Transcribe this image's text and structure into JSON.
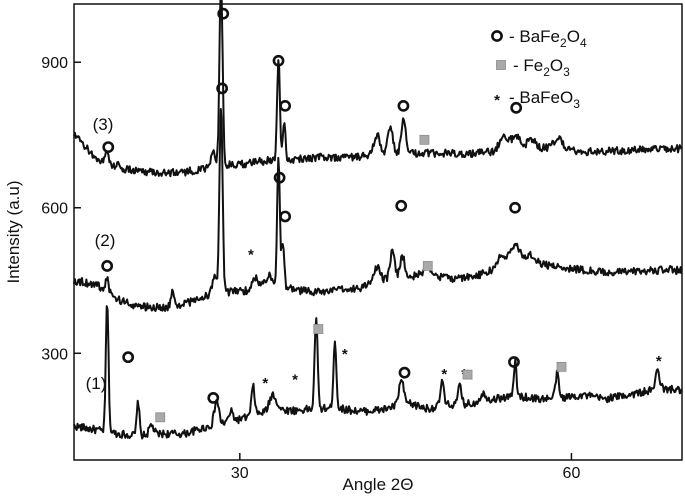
{
  "chart_data": {
    "type": "line",
    "title": "",
    "xlabel": "Angle 2Θ",
    "ylabel": "Intensity (a.u)",
    "xlim": [
      15,
      70
    ],
    "ylim": [
      80,
      1020
    ],
    "xticks": [
      30,
      60
    ],
    "yticks": [
      300,
      600,
      900
    ],
    "grid": false,
    "legend_position": "top-right",
    "legend": [
      {
        "marker": "circle",
        "text": "- BaFe",
        "sub1": "2",
        "mid": "O",
        "sub2": "4"
      },
      {
        "marker": "square",
        "text": "- Fe",
        "sub1": "2",
        "mid": "O",
        "sub2": "3"
      },
      {
        "marker": "star",
        "text": "- BaFe",
        "sub1": "",
        "mid": "O",
        "sub2": "3"
      }
    ],
    "series": [
      {
        "name": "(1)",
        "baseline": [
          [
            15,
            150
          ],
          [
            17,
            142
          ],
          [
            19,
            134
          ],
          [
            21,
            130
          ],
          [
            23,
            134
          ],
          [
            25,
            134
          ],
          [
            27,
            148
          ],
          [
            29,
            158
          ],
          [
            31,
            170
          ],
          [
            33,
            184
          ],
          [
            35,
            182
          ],
          [
            37,
            186
          ],
          [
            39,
            186
          ],
          [
            41,
            180
          ],
          [
            43,
            184
          ],
          [
            45,
            198
          ],
          [
            47,
            186
          ],
          [
            49,
            194
          ],
          [
            51,
            196
          ],
          [
            53,
            206
          ],
          [
            55,
            212
          ],
          [
            57,
            206
          ],
          [
            59,
            208
          ],
          [
            61,
            214
          ],
          [
            63,
            206
          ],
          [
            65,
            214
          ],
          [
            67,
            222
          ],
          [
            69,
            226
          ],
          [
            70,
            222
          ]
        ],
        "peaks": [
          [
            18.0,
            270,
            0.12
          ],
          [
            20.8,
            70,
            0.12
          ],
          [
            22.0,
            20,
            0.2
          ],
          [
            27.9,
            50,
            0.2
          ],
          [
            29.2,
            20,
            0.2
          ],
          [
            31.2,
            60,
            0.15
          ],
          [
            33.0,
            32,
            0.3
          ],
          [
            36.9,
            190,
            0.13
          ],
          [
            38.6,
            140,
            0.13
          ],
          [
            44.6,
            50,
            0.2
          ],
          [
            48.3,
            52,
            0.15
          ],
          [
            49.9,
            38,
            0.15
          ],
          [
            52.0,
            15,
            0.3
          ],
          [
            54.9,
            70,
            0.12
          ],
          [
            58.7,
            50,
            0.15
          ],
          [
            67.8,
            40,
            0.2
          ]
        ],
        "label": "(1)"
      },
      {
        "name": "(2)",
        "baseline": [
          [
            15,
            450
          ],
          [
            17,
            442
          ],
          [
            19,
            410
          ],
          [
            21,
            396
          ],
          [
            23,
            394
          ],
          [
            25,
            402
          ],
          [
            27,
            418
          ],
          [
            29,
            426
          ],
          [
            31,
            430
          ],
          [
            33,
            444
          ],
          [
            35,
            430
          ],
          [
            37,
            426
          ],
          [
            39,
            430
          ],
          [
            41,
            436
          ],
          [
            43,
            452
          ],
          [
            45,
            458
          ],
          [
            47,
            464
          ],
          [
            49,
            454
          ],
          [
            51,
            458
          ],
          [
            53,
            470
          ],
          [
            55,
            488
          ],
          [
            57,
            484
          ],
          [
            59,
            478
          ],
          [
            61,
            472
          ],
          [
            63,
            466
          ],
          [
            65,
            468
          ],
          [
            67,
            470
          ],
          [
            69,
            472
          ],
          [
            70,
            470
          ]
        ],
        "peaks": [
          [
            18.0,
            25,
            0.15
          ],
          [
            23.9,
            30,
            0.12
          ],
          [
            27.7,
            40,
            0.2
          ],
          [
            28.3,
            380,
            0.14
          ],
          [
            31.4,
            22,
            0.3
          ],
          [
            32.6,
            20,
            0.25
          ],
          [
            33.5,
            260,
            0.12
          ],
          [
            33.9,
            90,
            0.12
          ],
          [
            42.4,
            32,
            0.25
          ],
          [
            43.8,
            55,
            0.2
          ],
          [
            44.7,
            45,
            0.2
          ],
          [
            47.0,
            16,
            0.3
          ],
          [
            53.6,
            22,
            0.45
          ],
          [
            54.9,
            36,
            0.45
          ],
          [
            56.4,
            18,
            0.4
          ]
        ],
        "label": "(2)"
      },
      {
        "name": "(3)",
        "baseline": [
          [
            15,
            750
          ],
          [
            17,
            702
          ],
          [
            19,
            680
          ],
          [
            21,
            676
          ],
          [
            23,
            672
          ],
          [
            25,
            674
          ],
          [
            27,
            680
          ],
          [
            29,
            688
          ],
          [
            31,
            692
          ],
          [
            33,
            700
          ],
          [
            35,
            700
          ],
          [
            37,
            704
          ],
          [
            39,
            704
          ],
          [
            41,
            706
          ],
          [
            43,
            712
          ],
          [
            45,
            712
          ],
          [
            47,
            712
          ],
          [
            49,
            712
          ],
          [
            51,
            712
          ],
          [
            53,
            716
          ],
          [
            55,
            722
          ],
          [
            57,
            722
          ],
          [
            59,
            724
          ],
          [
            61,
            716
          ],
          [
            63,
            716
          ],
          [
            65,
            718
          ],
          [
            67,
            720
          ],
          [
            69,
            722
          ],
          [
            70,
            722
          ]
        ],
        "peaks": [
          [
            18.0,
            25,
            0.15
          ],
          [
            19.0,
            10,
            0.2
          ],
          [
            27.6,
            35,
            0.2
          ],
          [
            28.3,
            380,
            0.14
          ],
          [
            33.5,
            210,
            0.12
          ],
          [
            34.0,
            80,
            0.12
          ],
          [
            42.4,
            40,
            0.25
          ],
          [
            43.6,
            55,
            0.22
          ],
          [
            44.8,
            70,
            0.2
          ],
          [
            53.9,
            30,
            0.4
          ],
          [
            55.0,
            25,
            0.4
          ],
          [
            56.4,
            18,
            0.4
          ],
          [
            58.8,
            18,
            0.4
          ]
        ],
        "label": "(3)"
      }
    ],
    "markers": [
      {
        "type": "circle",
        "x": 18.1,
        "y": 725
      },
      {
        "type": "circle",
        "x": 28.5,
        "y": 1000
      },
      {
        "type": "circle",
        "x": 33.5,
        "y": 903
      },
      {
        "type": "circle",
        "x": 34.1,
        "y": 810
      },
      {
        "type": "circle",
        "x": 44.8,
        "y": 810
      },
      {
        "type": "square",
        "x": 46.7,
        "y": 740
      },
      {
        "type": "circle",
        "x": 55.0,
        "y": 806
      },
      {
        "type": "circle",
        "x": 18.0,
        "y": 480
      },
      {
        "type": "circle",
        "x": 28.4,
        "y": 846
      },
      {
        "type": "star",
        "x": 31.0,
        "y": 510
      },
      {
        "type": "circle",
        "x": 33.6,
        "y": 662
      },
      {
        "type": "circle",
        "x": 34.1,
        "y": 582
      },
      {
        "type": "circle",
        "x": 44.6,
        "y": 604
      },
      {
        "type": "square",
        "x": 47.0,
        "y": 480
      },
      {
        "type": "circle",
        "x": 54.9,
        "y": 600
      },
      {
        "type": "circle",
        "x": 19.9,
        "y": 292
      },
      {
        "type": "square",
        "x": 22.8,
        "y": 168
      },
      {
        "type": "circle",
        "x": 27.6,
        "y": 208
      },
      {
        "type": "star",
        "x": 32.3,
        "y": 245
      },
      {
        "type": "star",
        "x": 35.0,
        "y": 252
      },
      {
        "type": "square",
        "x": 37.1,
        "y": 350
      },
      {
        "type": "star",
        "x": 39.5,
        "y": 305
      },
      {
        "type": "circle",
        "x": 44.9,
        "y": 260
      },
      {
        "type": "star",
        "x": 48.5,
        "y": 263
      },
      {
        "type": "star",
        "x": 50.3,
        "y": 263
      },
      {
        "type": "square",
        "x": 50.6,
        "y": 256
      },
      {
        "type": "circle",
        "x": 54.8,
        "y": 282
      },
      {
        "type": "square",
        "x": 59.1,
        "y": 272
      },
      {
        "type": "star",
        "x": 67.9,
        "y": 290
      }
    ]
  }
}
